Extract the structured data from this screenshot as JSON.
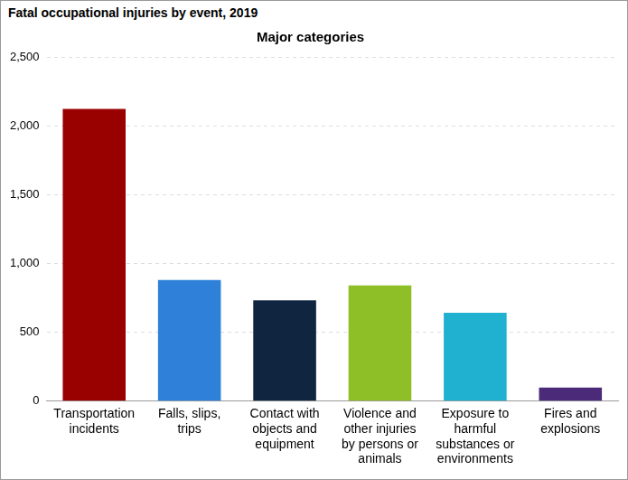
{
  "chart_data": {
    "type": "bar",
    "title": "Fatal occupational injuries by event, 2019",
    "subtitle": "Major categories",
    "categories": [
      "Transportation incidents",
      "Falls, slips, trips",
      "Contact with objects and equipment",
      "Violence and other injuries by persons or animals",
      "Exposure to harmful substances or environments",
      "Fires and explosions"
    ],
    "values": [
      2122,
      880,
      732,
      841,
      642,
      99
    ],
    "colors": [
      "#990000",
      "#2f80d8",
      "#0f2540",
      "#8ebf26",
      "#20b0d0",
      "#4b2a7a"
    ],
    "ylim": [
      0,
      2500
    ],
    "yticks": [
      0,
      500,
      {
        "value": 1000,
        "label": "1,000"
      },
      {
        "value": 1500,
        "label": "1,500"
      },
      {
        "value": 2000,
        "label": "2,000"
      },
      {
        "value": 2500,
        "label": "2,500"
      }
    ],
    "grid": true
  }
}
